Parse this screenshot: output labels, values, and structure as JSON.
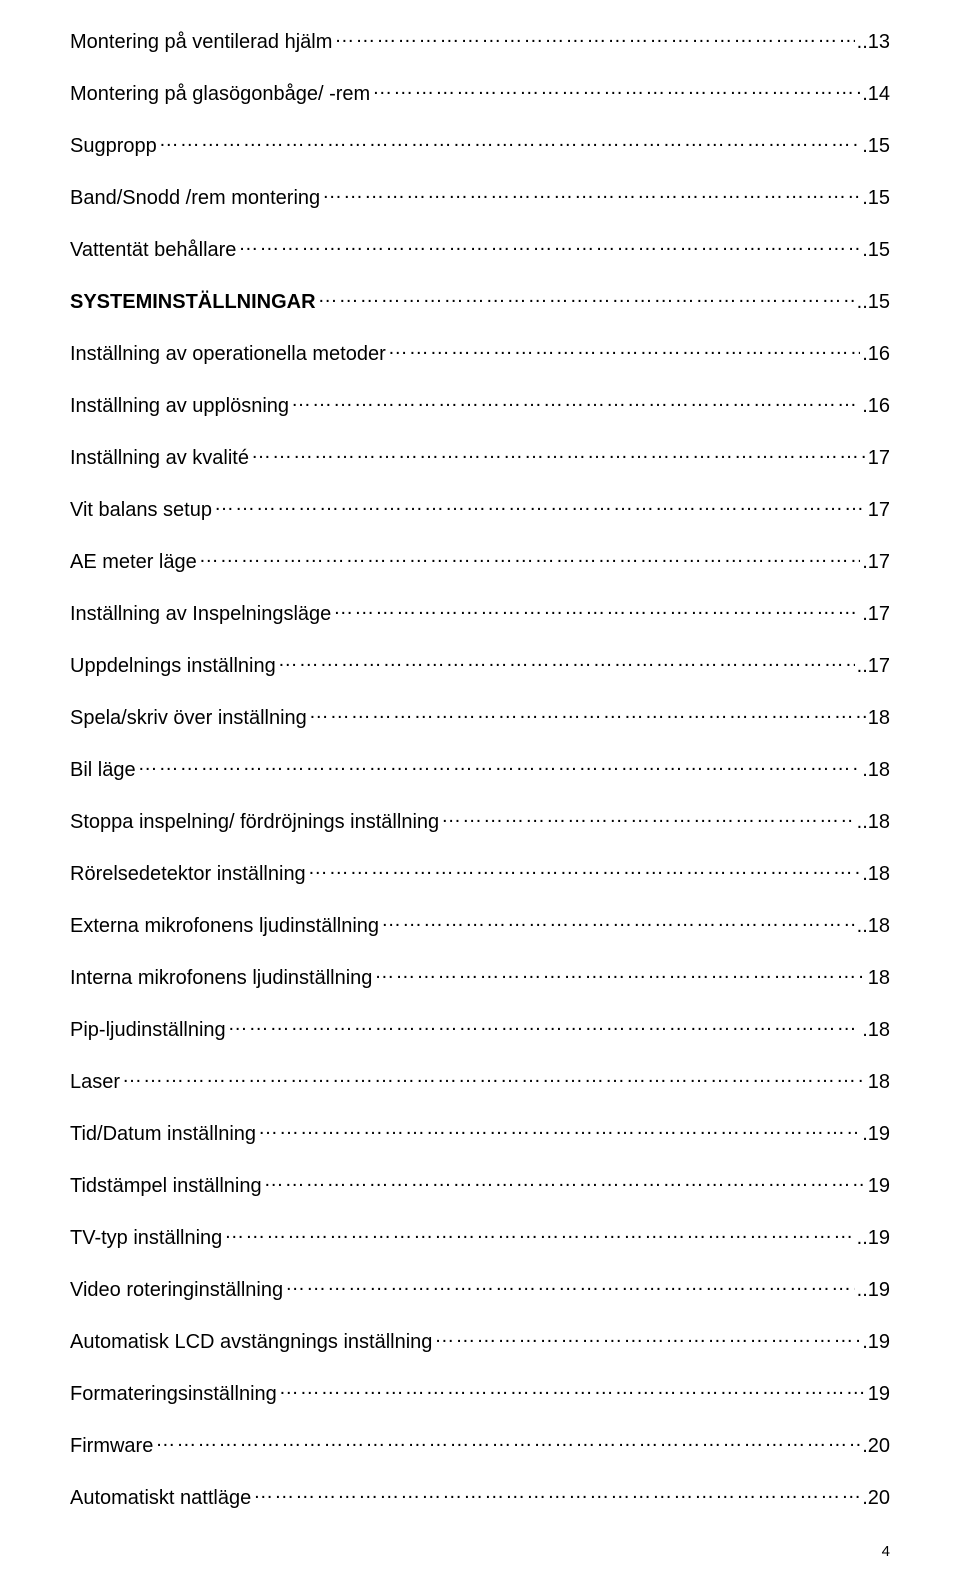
{
  "toc": [
    {
      "label": "Montering på ventilerad hjälm",
      "page": "..13",
      "bold": false
    },
    {
      "label": "Montering på glasögonbåge/ -rem",
      "page": ".14",
      "bold": false
    },
    {
      "label": "Sugpropp",
      "page": ".15",
      "bold": false
    },
    {
      "label": "Band/Snodd /rem montering",
      "page": ".15",
      "bold": false
    },
    {
      "label": "Vattentät behållare",
      "page": ".15",
      "bold": false
    },
    {
      "label": "SYSTEMINSTÄLLNINGAR",
      "page": "..15",
      "bold": true
    },
    {
      "label": "Inställning av operationella metoder",
      "page": ".16",
      "bold": false
    },
    {
      "label": "Inställning av upplösning",
      "page": ".16",
      "bold": false
    },
    {
      "label": "Inställning av kvalité",
      "page": "17",
      "bold": false
    },
    {
      "label": "Vit balans setup",
      "page": "17",
      "bold": false
    },
    {
      "label": "AE meter läge",
      "page": ".17",
      "bold": false
    },
    {
      "label": "Inställning av Inspelningsläge",
      "page": ".17",
      "bold": false
    },
    {
      "label": "Uppdelnings inställning",
      "page": "..17",
      "bold": false
    },
    {
      "label": "Spela/skriv över inställning",
      "page": "18",
      "bold": false
    },
    {
      "label": "Bil läge",
      "page": ".18",
      "bold": false
    },
    {
      "label": "Stoppa inspelning/ fördröjnings inställning",
      "page": "..18",
      "bold": false
    },
    {
      "label": "Rörelsedetektor inställning",
      "page": ".18",
      "bold": false
    },
    {
      "label": "Externa mikrofonens ljudinställning",
      "page": "..18",
      "bold": false
    },
    {
      "label": "Interna mikrofonens ljudinställning",
      "page": "18",
      "bold": false
    },
    {
      "label": "Pip-ljudinställning",
      "page": ".18",
      "bold": false
    },
    {
      "label": "Laser",
      "page": "18",
      "bold": false
    },
    {
      "label": "Tid/Datum inställning",
      "page": ".19",
      "bold": false
    },
    {
      "label": "Tidstämpel inställning",
      "page": "19",
      "bold": false
    },
    {
      "label": "TV-typ inställning",
      "page": "..19",
      "bold": false
    },
    {
      "label": "Video roteringinställning",
      "page": "..19",
      "bold": false
    },
    {
      "label": "Automatisk LCD avstängnings inställning",
      "page": ".19",
      "bold": false
    },
    {
      "label": "Formateringsinställning",
      "page": "19",
      "bold": false
    },
    {
      "label": "Firmware",
      "page": ".20",
      "bold": false
    },
    {
      "label": "Automatiskt nattläge",
      "page": ".20",
      "bold": false
    }
  ],
  "page_number": "4"
}
